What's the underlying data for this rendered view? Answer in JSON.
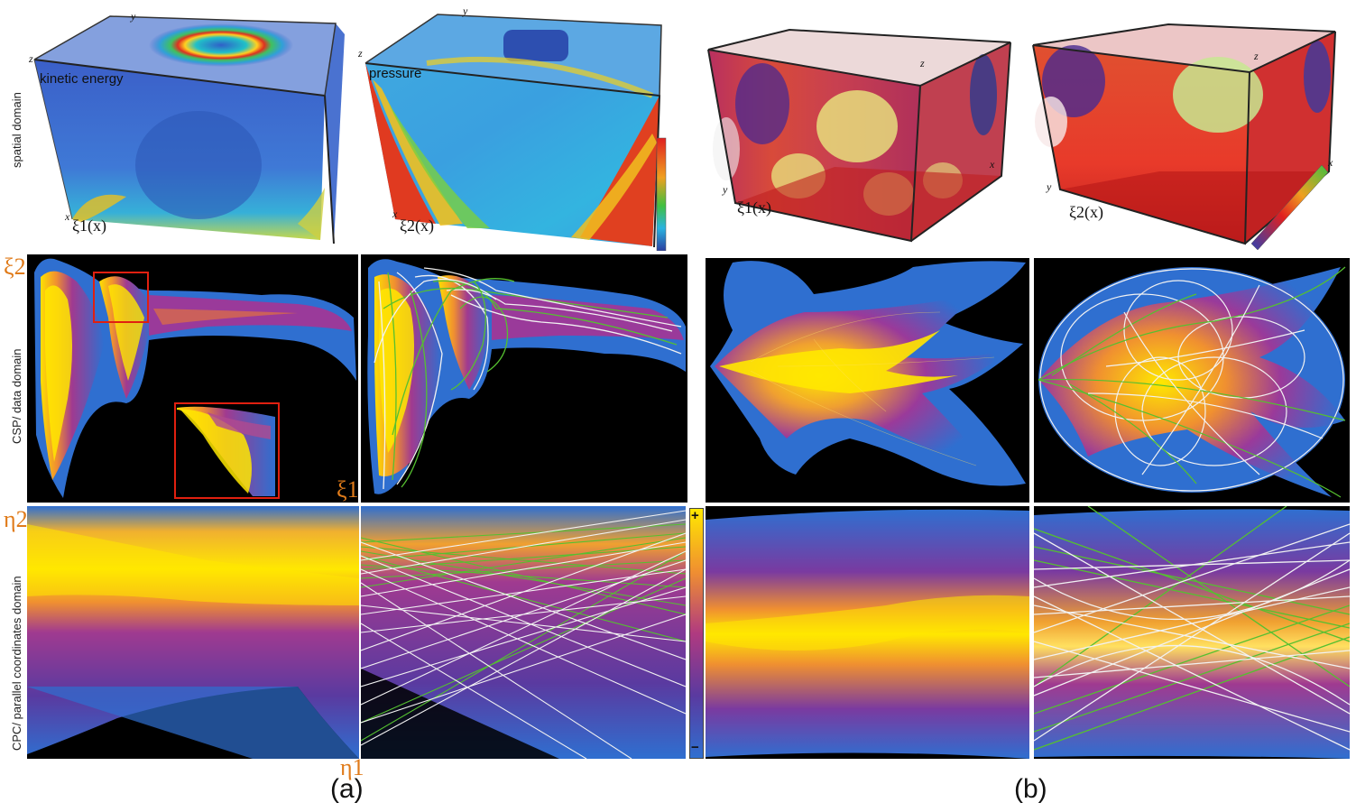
{
  "row_labels": {
    "spatial": "spatial domain",
    "csp": "CSP/ data domain",
    "cpc": "CPC/ parallel coordinates domain"
  },
  "panel_a": {
    "caption": "(a)",
    "top_left": {
      "title": "kinetic energy",
      "field": "ξ1(x)"
    },
    "top_right": {
      "title": "pressure",
      "field": "ξ2(x)"
    },
    "csp_axes": {
      "y": "ξ2",
      "x": "ξ1"
    },
    "cpc_axes": {
      "y": "η2",
      "x": "η1"
    }
  },
  "panel_b": {
    "caption": "(b)",
    "top_left": {
      "field": "ξ1(x)"
    },
    "top_right": {
      "field": "ξ2(x)"
    }
  },
  "cube_axis_letters": {
    "x": "x",
    "y": "y",
    "z": "z"
  },
  "colorbar": {
    "plus": "+",
    "minus": "−"
  },
  "colors": {
    "jet_low": "#2b3fa0",
    "jet_mid": "#2ab3e0",
    "jet_high": "#e02020",
    "plasma_low": "#1f5fb8",
    "plasma_mid": "#7a2a9a",
    "plasma_high": "#ffe800",
    "line_green": "#55c030",
    "line_white": "#f2f2f2"
  }
}
